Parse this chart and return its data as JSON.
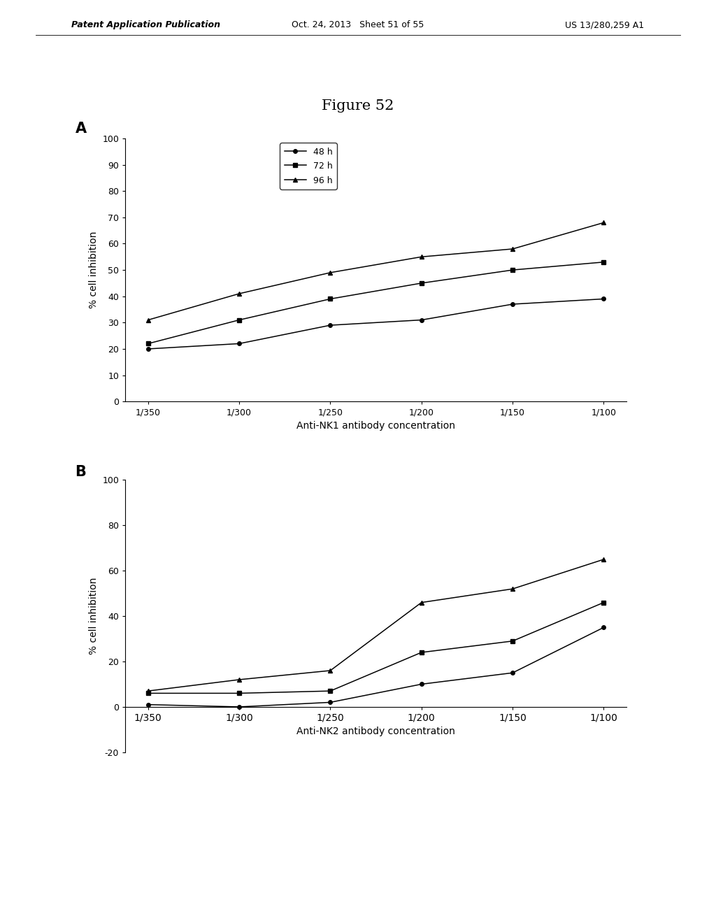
{
  "figure_title": "Figure 52",
  "header_left": "Patent Application Publication",
  "header_center": "Oct. 24, 2013   Sheet 51 of 55",
  "header_right": "US 13/280,259 A1",
  "plot_A": {
    "label": "A",
    "x_labels": [
      "1/350",
      "1/300",
      "1/250",
      "1/200",
      "1/150",
      "1/100"
    ],
    "x_values": [
      0,
      1,
      2,
      3,
      4,
      5
    ],
    "series": [
      {
        "name": "48 h",
        "marker": "o",
        "values": [
          20,
          22,
          29,
          31,
          37,
          39
        ]
      },
      {
        "name": "72 h",
        "marker": "s",
        "values": [
          22,
          31,
          39,
          45,
          50,
          53
        ]
      },
      {
        "name": "96 h",
        "marker": "^",
        "values": [
          31,
          41,
          49,
          55,
          58,
          68
        ]
      }
    ],
    "ylabel": "% cell inhibition",
    "xlabel": "Anti-NK1 antibody concentration",
    "ylim": [
      0,
      100
    ],
    "yticks": [
      0,
      10,
      20,
      30,
      40,
      50,
      60,
      70,
      80,
      90,
      100
    ]
  },
  "plot_B": {
    "label": "B",
    "x_labels": [
      "1/350",
      "1/300",
      "1/250",
      "1/200",
      "1/150",
      "1/100"
    ],
    "x_values": [
      0,
      1,
      2,
      3,
      4,
      5
    ],
    "series": [
      {
        "name": "48 h",
        "marker": "o",
        "values": [
          1,
          0,
          2,
          10,
          15,
          35
        ]
      },
      {
        "name": "72 h",
        "marker": "s",
        "values": [
          6,
          6,
          7,
          24,
          29,
          46
        ]
      },
      {
        "name": "96 h",
        "marker": "^",
        "values": [
          7,
          12,
          16,
          46,
          52,
          65
        ]
      }
    ],
    "ylabel": "% cell inhibition",
    "xlabel": "Anti-NK2 antibody concentration",
    "ylim": [
      -20,
      100
    ],
    "yticks": [
      -20,
      0,
      20,
      40,
      60,
      80,
      100
    ]
  },
  "line_color": "#000000",
  "background_color": "#ffffff",
  "font_size_title": 15,
  "font_size_label": 10,
  "font_size_tick": 9,
  "font_size_legend": 9,
  "font_size_header": 9,
  "font_size_panel_label": 15
}
